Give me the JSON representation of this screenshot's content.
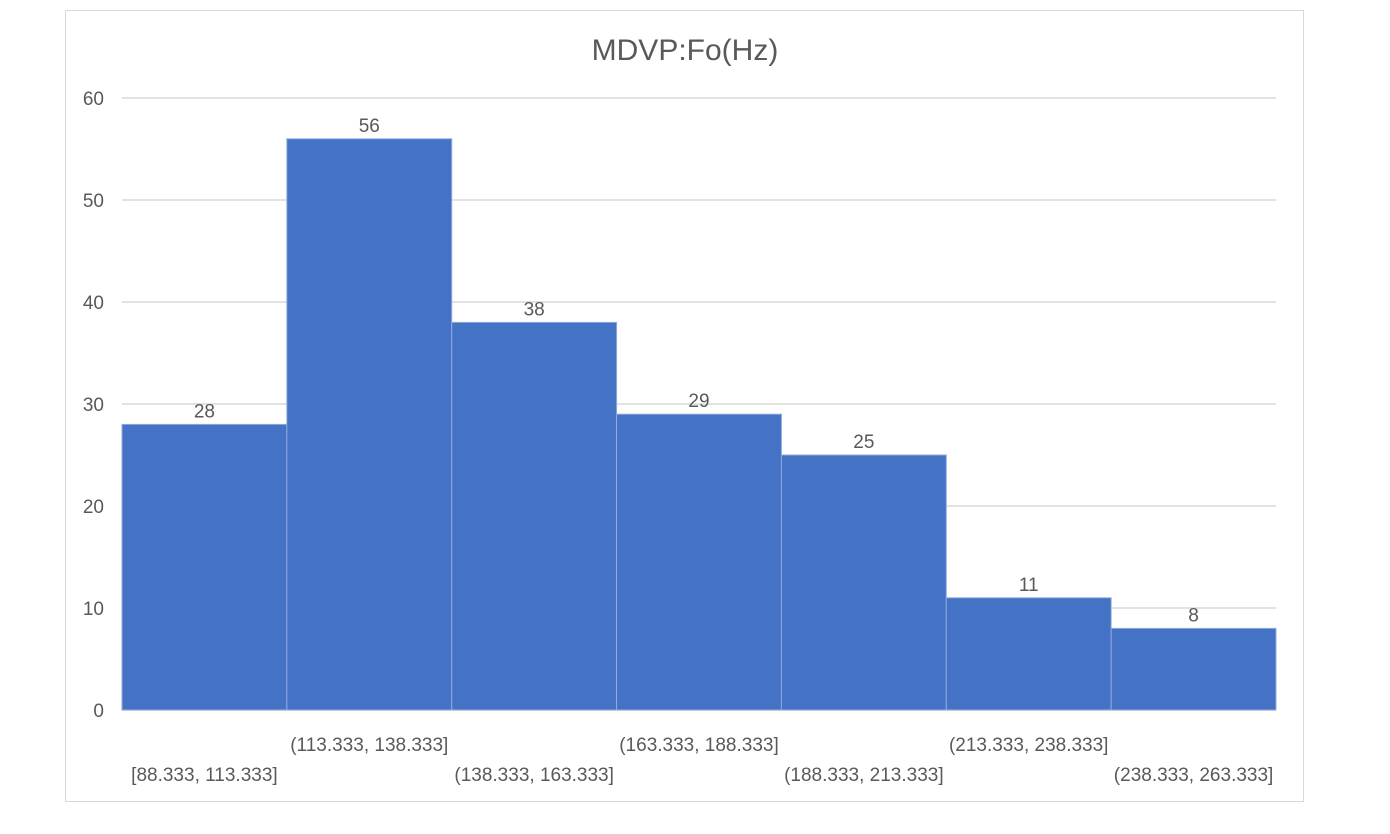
{
  "chart_data": {
    "type": "bar",
    "title": "MDVP:Fo(Hz)",
    "xlabel": "",
    "ylabel": "",
    "categories": [
      "[88.333, 113.333]",
      "(113.333, 138.333]",
      "(138.333, 163.333]",
      "(163.333, 188.333]",
      "(188.333, 213.333]",
      "(213.333, 238.333]",
      "(238.333, 263.333]"
    ],
    "values": [
      28,
      56,
      38,
      29,
      25,
      11,
      8
    ],
    "ylim": [
      0,
      60
    ],
    "yticks": [
      0,
      10,
      20,
      30,
      40,
      50,
      60
    ],
    "grid": true,
    "legend": "none",
    "bar_color": "#4472C4",
    "bar_border_color": "#8FAADC"
  }
}
